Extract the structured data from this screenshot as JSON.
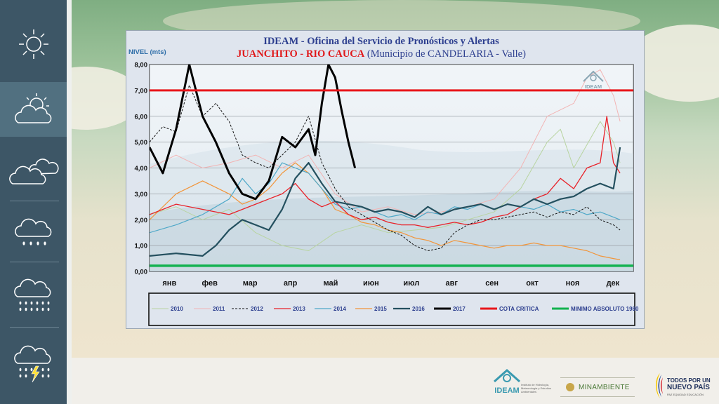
{
  "sidebar": {
    "items": [
      {
        "icon": "sun-icon",
        "active": false
      },
      {
        "icon": "partly-cloudy-icon",
        "active": true
      },
      {
        "icon": "clouds-icon",
        "active": false
      },
      {
        "icon": "light-rain-icon",
        "active": false
      },
      {
        "icon": "heavy-rain-icon",
        "active": false
      },
      {
        "icon": "thunderstorm-icon",
        "active": false
      }
    ]
  },
  "logos": {
    "ideam_chart": "IDEAM",
    "ideam_footer": "IDEAM",
    "ideam_footer_tagline": "Instituto de Hidrología, Meteorología y Estudios Ambientales",
    "minambiente": "MINAMBIENTE",
    "gobierno_line1": "TODOS POR UN",
    "gobierno_line2": "NUEVO PAÍS",
    "gobierno_line3": "PAZ  EQUIDAD  EDUCACIÓN"
  },
  "colors": {
    "sidebar": "#3d5666",
    "title_blue": "#2d3f8f",
    "title_red": "#e0191b",
    "critical": "#e8161b",
    "minimum": "#12b24f"
  },
  "chart_data": {
    "type": "line",
    "title_line1": "IDEAM - Oficina del Servicio de Pronósticos y Alertas",
    "title_line2_red": "JUANCHITO - RIO CAUCA",
    "title_line2_rest": " (Municipio de CANDELARIA - Valle)",
    "ylabel": "NIVEL (mts)",
    "ylim": [
      0,
      8
    ],
    "yticks": [
      "0,00",
      "1,00",
      "2,00",
      "3,00",
      "4,00",
      "5,00",
      "6,00",
      "7,00",
      "8,00"
    ],
    "months": [
      "янв",
      "фев",
      "мар",
      "апр",
      "май",
      "июн",
      "июл",
      "авг",
      "сен",
      "окт",
      "ноя",
      "дек"
    ],
    "grid": true,
    "legend_position": "bottom",
    "series": [
      {
        "name": "2010",
        "color": "#b8d4a0",
        "width": 1,
        "dash": "",
        "points": [
          [
            0,
            2.2
          ],
          [
            20,
            2.5
          ],
          [
            40,
            2.0
          ],
          [
            60,
            2.4
          ],
          [
            80,
            1.5
          ],
          [
            100,
            1.0
          ],
          [
            120,
            0.8
          ],
          [
            140,
            1.5
          ],
          [
            160,
            1.8
          ],
          [
            180,
            1.5
          ],
          [
            200,
            1.6
          ],
          [
            220,
            1.7
          ],
          [
            240,
            2.0
          ],
          [
            260,
            2.3
          ],
          [
            280,
            3.2
          ],
          [
            300,
            5.0
          ],
          [
            310,
            5.5
          ],
          [
            320,
            4.0
          ],
          [
            340,
            5.8
          ],
          [
            350,
            5.0
          ],
          [
            355,
            4.2
          ]
        ]
      },
      {
        "name": "2011",
        "color": "#f2b4b4",
        "width": 1,
        "dash": "",
        "points": [
          [
            0,
            4.0
          ],
          [
            20,
            4.5
          ],
          [
            40,
            4.0
          ],
          [
            60,
            4.2
          ],
          [
            80,
            4.5
          ],
          [
            100,
            4.0
          ],
          [
            120,
            4.5
          ],
          [
            140,
            3.0
          ],
          [
            160,
            2.3
          ],
          [
            180,
            2.5
          ],
          [
            200,
            2.2
          ],
          [
            220,
            2.3
          ],
          [
            240,
            2.5
          ],
          [
            260,
            2.8
          ],
          [
            280,
            4.0
          ],
          [
            300,
            6.0
          ],
          [
            320,
            6.5
          ],
          [
            330,
            7.5
          ],
          [
            340,
            7.8
          ],
          [
            350,
            6.8
          ],
          [
            355,
            5.8
          ]
        ]
      },
      {
        "name": "2012",
        "color": "#111111",
        "width": 1,
        "dash": "3,2",
        "points": [
          [
            0,
            5.0
          ],
          [
            10,
            5.6
          ],
          [
            20,
            5.4
          ],
          [
            30,
            7.2
          ],
          [
            40,
            6.0
          ],
          [
            50,
            6.5
          ],
          [
            60,
            5.8
          ],
          [
            70,
            4.5
          ],
          [
            80,
            4.2
          ],
          [
            90,
            4.0
          ],
          [
            100,
            4.5
          ],
          [
            110,
            5.0
          ],
          [
            120,
            6.0
          ],
          [
            130,
            4.2
          ],
          [
            140,
            3.2
          ],
          [
            150,
            2.5
          ],
          [
            160,
            2.2
          ],
          [
            170,
            1.9
          ],
          [
            180,
            1.6
          ],
          [
            190,
            1.4
          ],
          [
            200,
            1.0
          ],
          [
            210,
            0.8
          ],
          [
            220,
            0.9
          ],
          [
            230,
            1.5
          ],
          [
            240,
            1.8
          ],
          [
            250,
            2.0
          ],
          [
            260,
            2.0
          ],
          [
            270,
            2.1
          ],
          [
            280,
            2.2
          ],
          [
            290,
            2.3
          ],
          [
            300,
            2.1
          ],
          [
            310,
            2.3
          ],
          [
            320,
            2.2
          ],
          [
            330,
            2.5
          ],
          [
            340,
            2.0
          ],
          [
            350,
            1.8
          ],
          [
            355,
            1.6
          ]
        ]
      },
      {
        "name": "2013",
        "color": "#e8232a",
        "width": 1.3,
        "dash": "",
        "points": [
          [
            0,
            2.2
          ],
          [
            20,
            2.6
          ],
          [
            40,
            2.4
          ],
          [
            60,
            2.2
          ],
          [
            80,
            2.6
          ],
          [
            100,
            3.0
          ],
          [
            110,
            3.4
          ],
          [
            120,
            2.8
          ],
          [
            130,
            2.5
          ],
          [
            140,
            2.7
          ],
          [
            150,
            2.2
          ],
          [
            160,
            2.0
          ],
          [
            170,
            2.1
          ],
          [
            180,
            1.9
          ],
          [
            190,
            1.8
          ],
          [
            200,
            1.8
          ],
          [
            210,
            1.7
          ],
          [
            220,
            1.8
          ],
          [
            230,
            1.9
          ],
          [
            240,
            1.8
          ],
          [
            250,
            1.9
          ],
          [
            260,
            2.1
          ],
          [
            270,
            2.2
          ],
          [
            280,
            2.5
          ],
          [
            290,
            2.8
          ],
          [
            300,
            3.0
          ],
          [
            310,
            3.6
          ],
          [
            320,
            3.2
          ],
          [
            330,
            4.0
          ],
          [
            340,
            4.2
          ],
          [
            345,
            6.0
          ],
          [
            350,
            4.2
          ],
          [
            355,
            3.8
          ]
        ]
      },
      {
        "name": "2014",
        "color": "#4ea8c8",
        "width": 1.2,
        "dash": "",
        "points": [
          [
            0,
            1.5
          ],
          [
            20,
            1.8
          ],
          [
            40,
            2.2
          ],
          [
            60,
            2.8
          ],
          [
            70,
            3.6
          ],
          [
            80,
            3.0
          ],
          [
            90,
            3.4
          ],
          [
            100,
            4.2
          ],
          [
            110,
            4.0
          ],
          [
            120,
            3.8
          ],
          [
            130,
            3.2
          ],
          [
            140,
            2.6
          ],
          [
            150,
            2.4
          ],
          [
            160,
            2.5
          ],
          [
            170,
            2.3
          ],
          [
            180,
            2.1
          ],
          [
            190,
            2.2
          ],
          [
            200,
            2.0
          ],
          [
            210,
            2.3
          ],
          [
            220,
            2.2
          ],
          [
            230,
            2.5
          ],
          [
            240,
            2.4
          ],
          [
            250,
            2.6
          ],
          [
            260,
            2.4
          ],
          [
            270,
            2.6
          ],
          [
            280,
            2.5
          ],
          [
            290,
            2.4
          ],
          [
            300,
            2.6
          ],
          [
            310,
            2.3
          ],
          [
            320,
            2.4
          ],
          [
            330,
            2.2
          ],
          [
            340,
            2.3
          ],
          [
            350,
            2.1
          ],
          [
            355,
            2.0
          ]
        ]
      },
      {
        "name": "2015",
        "color": "#f2953a",
        "width": 1.2,
        "dash": "",
        "points": [
          [
            0,
            2.0
          ],
          [
            20,
            3.0
          ],
          [
            40,
            3.5
          ],
          [
            60,
            3.0
          ],
          [
            70,
            2.6
          ],
          [
            80,
            2.8
          ],
          [
            90,
            3.2
          ],
          [
            100,
            3.8
          ],
          [
            110,
            4.2
          ],
          [
            120,
            3.8
          ],
          [
            130,
            3.2
          ],
          [
            140,
            2.4
          ],
          [
            150,
            2.2
          ],
          [
            160,
            1.9
          ],
          [
            170,
            1.8
          ],
          [
            180,
            1.6
          ],
          [
            190,
            1.5
          ],
          [
            200,
            1.3
          ],
          [
            210,
            1.2
          ],
          [
            220,
            1.0
          ],
          [
            230,
            1.2
          ],
          [
            240,
            1.1
          ],
          [
            250,
            1.0
          ],
          [
            260,
            0.9
          ],
          [
            270,
            1.0
          ],
          [
            280,
            1.0
          ],
          [
            290,
            1.1
          ],
          [
            300,
            1.0
          ],
          [
            310,
            1.0
          ],
          [
            320,
            0.9
          ],
          [
            330,
            0.8
          ],
          [
            340,
            0.6
          ],
          [
            350,
            0.5
          ],
          [
            355,
            0.45
          ]
        ]
      },
      {
        "name": "2016",
        "color": "#24505f",
        "width": 2.2,
        "dash": "",
        "points": [
          [
            0,
            0.6
          ],
          [
            20,
            0.7
          ],
          [
            40,
            0.6
          ],
          [
            50,
            1.0
          ],
          [
            60,
            1.6
          ],
          [
            70,
            2.0
          ],
          [
            80,
            1.8
          ],
          [
            90,
            1.6
          ],
          [
            100,
            2.4
          ],
          [
            110,
            3.6
          ],
          [
            120,
            4.2
          ],
          [
            130,
            3.4
          ],
          [
            140,
            2.7
          ],
          [
            150,
            2.6
          ],
          [
            160,
            2.5
          ],
          [
            170,
            2.3
          ],
          [
            180,
            2.4
          ],
          [
            190,
            2.3
          ],
          [
            200,
            2.1
          ],
          [
            210,
            2.5
          ],
          [
            220,
            2.2
          ],
          [
            230,
            2.4
          ],
          [
            240,
            2.5
          ],
          [
            250,
            2.6
          ],
          [
            260,
            2.4
          ],
          [
            270,
            2.6
          ],
          [
            280,
            2.5
          ],
          [
            290,
            2.8
          ],
          [
            300,
            2.6
          ],
          [
            310,
            2.8
          ],
          [
            320,
            2.9
          ],
          [
            330,
            3.2
          ],
          [
            340,
            3.4
          ],
          [
            350,
            3.2
          ],
          [
            355,
            4.8
          ]
        ]
      },
      {
        "name": "2017",
        "color": "#000000",
        "width": 3,
        "dash": "",
        "points": [
          [
            0,
            4.8
          ],
          [
            10,
            3.8
          ],
          [
            20,
            5.5
          ],
          [
            30,
            8.0
          ],
          [
            40,
            6.0
          ],
          [
            50,
            5.0
          ],
          [
            60,
            3.8
          ],
          [
            70,
            3.0
          ],
          [
            80,
            2.8
          ],
          [
            90,
            3.5
          ],
          [
            100,
            5.2
          ],
          [
            110,
            4.8
          ],
          [
            120,
            5.5
          ],
          [
            125,
            4.5
          ],
          [
            130,
            6.5
          ],
          [
            135,
            8.0
          ],
          [
            140,
            7.5
          ],
          [
            145,
            6.2
          ],
          [
            150,
            5.0
          ],
          [
            155,
            4.0
          ]
        ]
      },
      {
        "name": "COTA CRITICA",
        "color": "#e8161b",
        "width": 3,
        "dash": "",
        "constant": 7.0
      },
      {
        "name": "MINIMO ABSOLUTO 1980",
        "color": "#12b24f",
        "width": 3.5,
        "dash": "",
        "constant": 0.22
      }
    ]
  }
}
